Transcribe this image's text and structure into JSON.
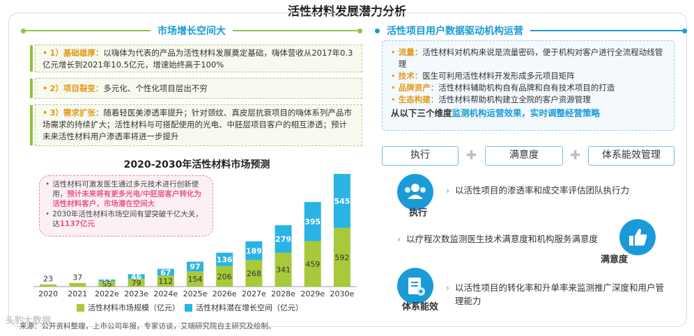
{
  "title": "活性材料发展潜力分析",
  "left": {
    "header": "市场增长空间大",
    "points": [
      {
        "key": "1）基础雄厚：",
        "text": "以嗨体为代表的产品为活性材料发展奠定基础，嗨体营收从2017年0.3亿元增长到2021年10.5亿元，增速始终高于100%"
      },
      {
        "key": "2）项目裂变：",
        "text": "多元化、个性化项目层出不穷"
      },
      {
        "key": "3）需求扩张：",
        "text": "随着轻医美渗透率提升；针对颈纹、真皮层抗衰项目的嗨体系列产品市场需求的持续扩大；活性材料与可搭配使用的光电、中胚层项目客户的相互渗透；预计未来活性材料用户渗透率将进一步提升"
      }
    ],
    "chart_title": "2020-2030年活性材料市场预测",
    "callout": {
      "line1": "活性材料可激发医生通过多元技术进行创新使用，",
      "line1_hl": "预计未来将有更多光电/中胚层客户转化为活性材料客户，市场潜在空间大",
      "line2": "2030年活性材料市场空间有望突破千亿大关，达",
      "line2_hl": "1137亿元"
    }
  },
  "chart_data": {
    "type": "bar",
    "stacked": true,
    "title": "2020-2030年活性材料市场预测",
    "categories": [
      "2020",
      "2021",
      "2022e",
      "2023e",
      "2024e",
      "2025e",
      "2026e",
      "2027e",
      "2028e",
      "2029e",
      "2030e"
    ],
    "series": [
      {
        "name": "活性材料市场规模（亿元）",
        "color": "#a8c93a",
        "values": [
          23,
          37,
          55,
          79,
          112,
          154,
          206,
          268,
          341,
          459,
          592
        ]
      },
      {
        "name": "活性材料潜在增长空间（亿元）",
        "color": "#2ab4e3",
        "values": [
          null,
          null,
          17,
          46,
          67,
          97,
          136,
          189,
          279,
          395,
          545
        ]
      }
    ],
    "legend": "bottom"
  },
  "right": {
    "header": "活性项目用户数据驱动机构运营",
    "items": [
      {
        "key": "流量：",
        "text": "活性材料对机构来说是流量密码，便于机构对客户进行全流程动线管理"
      },
      {
        "key": "技术：",
        "text": "医生可利用活性材料开发形成多元项目矩阵"
      },
      {
        "key": "品牌资产：",
        "text": "活性材料辅助机构自有品牌和自有技术项目的打造"
      },
      {
        "key": "生态构建：",
        "text": "活性材料帮助机构建立全院的客户资源管理"
      }
    ],
    "conclusion_a": "从以下三个维度",
    "conclusion_b": "监测机构运营效果，实时调整经营策略",
    "dims": [
      "执行",
      "满意度",
      "体系能效管理"
    ],
    "details": [
      {
        "label": "执行",
        "icon": "team-icon",
        "text": "以活性项目的渗透率和成交率评估团队执行力"
      },
      {
        "label": "满意度",
        "icon": "thumbs-up-icon",
        "text": "以疗程次数监测医生技术满意度和机构服务满意度"
      },
      {
        "label": "体系能效",
        "icon": "clipboard-gear-icon",
        "text": "以活性项目的转化率和升单率来监测推广深度和用户管理能力"
      }
    ]
  },
  "source": "来源：公开资料整理，上市公司年报，专家访谈，艾瑞研究院自主研究及绘制。",
  "watermark": "头豹大数据"
}
